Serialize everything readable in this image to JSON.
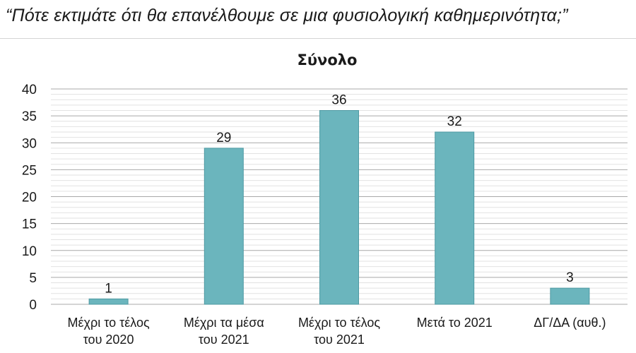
{
  "question": "“Πότε εκτιμάτε ότι θα επανέλθουμε σε μια φυσιολογική καθημερινότητα;”",
  "chart_data": {
    "type": "bar",
    "title": "Σύνολο",
    "categories": [
      [
        "Μέχρι το τέλος",
        "του 2020"
      ],
      [
        "Μέχρι τα μέσα",
        "του 2021"
      ],
      [
        "Μέχρι το τέλος",
        "του 2021"
      ],
      [
        "Μετά το 2021"
      ],
      [
        "ΔΓ/ΔΑ (αυθ.)"
      ]
    ],
    "values": [
      1,
      29,
      36,
      32,
      3
    ],
    "ylim": [
      0,
      40
    ],
    "yticks": [
      0,
      5,
      10,
      15,
      20,
      25,
      30,
      35,
      40
    ],
    "minor_grid_step": 1,
    "bar_color": "#6bb5bd",
    "bar_edge_color": "#4f9aa3",
    "grid": true,
    "legend": "none"
  }
}
